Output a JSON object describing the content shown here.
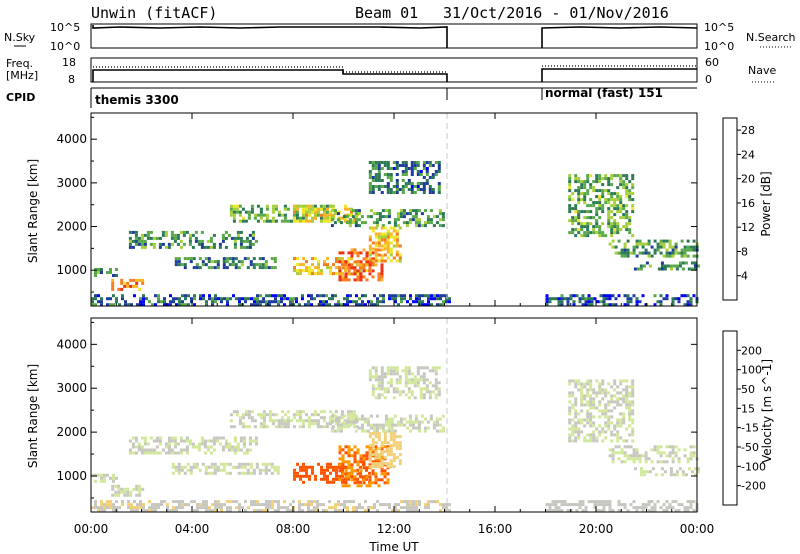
{
  "header": {
    "station": "Unwin (fitACF)",
    "beam": "Beam 01",
    "date_range": "31/Oct/2016 - 01/Nov/2016"
  },
  "nsky_panel": {
    "left_label": "N.Sky",
    "right_label": "N.Search",
    "left_ticks": [
      "10^5",
      "10^0"
    ],
    "right_ticks": [
      "10^5",
      "10^0"
    ]
  },
  "freq_panel": {
    "left_label_1": "Freq.",
    "left_label_2": "[MHz]",
    "right_label": "Nave",
    "left_ticks": [
      "18",
      "8"
    ],
    "right_ticks": [
      "60",
      "0"
    ]
  },
  "cpid_panel": {
    "label": "CPID",
    "segments": [
      "themis 3300",
      "normal (fast) 151"
    ]
  },
  "colors": {
    "power": [
      "#0000ff",
      "#1e3c9c",
      "#2b7a55",
      "#58a84a",
      "#a6cf3a",
      "#f0e62c",
      "#f8b52a",
      "#f77b1f",
      "#ef2e13"
    ],
    "velocity": [
      "#ff0000",
      "#ff5500",
      "#ff9900",
      "#f2d07a",
      "#c7c7c0",
      "#d1e89a",
      "#6cc832",
      "#2e7a32",
      "#244f9b",
      "#2030c0"
    ]
  },
  "chart_data": [
    {
      "type": "heatmap",
      "title": "",
      "ylabel": "Slant Range [km]",
      "xlabel": "",
      "ylim": [
        180,
        4600
      ],
      "yticks": [
        "1000",
        "2000",
        "3000",
        "4000"
      ],
      "xlim_hours": [
        0,
        24
      ],
      "colorbar": {
        "label": "Power [dB]",
        "ticks": [
          "4",
          "8",
          "12",
          "16",
          "20",
          "24",
          "28"
        ],
        "range": [
          0,
          30
        ]
      },
      "regions": [
        {
          "t": [
            0.0,
            1.0
          ],
          "range": [
            850,
            1050
          ],
          "value": 10
        },
        {
          "t": [
            0.8,
            2.1
          ],
          "range": [
            560,
            800
          ],
          "value": 24
        },
        {
          "t": [
            1.5,
            6.5
          ],
          "range": [
            1500,
            1900
          ],
          "value": 10
        },
        {
          "t": [
            3.2,
            7.4
          ],
          "range": [
            1050,
            1300
          ],
          "value": 9
        },
        {
          "t": [
            5.5,
            9.5
          ],
          "range": [
            2100,
            2500
          ],
          "value": 12
        },
        {
          "t": [
            8.0,
            10.5
          ],
          "range": [
            2100,
            2500
          ],
          "value": 19
        },
        {
          "t": [
            9.5,
            14.0
          ],
          "range": [
            2000,
            2400
          ],
          "value": 11
        },
        {
          "t": [
            8.0,
            11.0
          ],
          "range": [
            900,
            1300
          ],
          "value": 21
        },
        {
          "t": [
            9.8,
            11.5
          ],
          "range": [
            800,
            1500
          ],
          "value": 27
        },
        {
          "t": [
            11.0,
            12.2
          ],
          "range": [
            1200,
            2000
          ],
          "value": 20
        },
        {
          "t": [
            11.0,
            13.8
          ],
          "range": [
            2800,
            3500
          ],
          "value": 8
        },
        {
          "t": [
            0.0,
            14.2
          ],
          "range": [
            200,
            450
          ],
          "value": 6
        },
        {
          "t": [
            18.9,
            21.4
          ],
          "range": [
            1800,
            3200
          ],
          "value": 12
        },
        {
          "t": [
            20.5,
            24.0
          ],
          "range": [
            1300,
            1700
          ],
          "value": 11
        },
        {
          "t": [
            21.5,
            24.0
          ],
          "range": [
            1000,
            1200
          ],
          "value": 10
        },
        {
          "t": [
            18.0,
            24.0
          ],
          "range": [
            200,
            450
          ],
          "value": 6
        }
      ]
    },
    {
      "type": "heatmap",
      "title": "",
      "ylabel": "Slant Range [km]",
      "xlabel": "Time UT",
      "ylim": [
        180,
        4600
      ],
      "yticks": [
        "1000",
        "2000",
        "3000",
        "4000"
      ],
      "xticks": [
        "00:00",
        "04:00",
        "08:00",
        "12:00",
        "16:00",
        "20:00",
        "00:00"
      ],
      "xlim_hours": [
        0,
        24
      ],
      "colorbar": {
        "label": "Velocity [m s^-1]",
        "ticks": [
          "-200",
          "-100",
          "-50",
          "-15",
          "15",
          "50",
          "100",
          "200"
        ],
        "range": [
          -250,
          250
        ]
      },
      "regions": [
        {
          "t": [
            0.0,
            1.0
          ],
          "range": [
            850,
            1050
          ],
          "value": 0
        },
        {
          "t": [
            0.8,
            2.1
          ],
          "range": [
            560,
            800
          ],
          "value": -5
        },
        {
          "t": [
            1.5,
            6.5
          ],
          "range": [
            1500,
            1900
          ],
          "value": 0
        },
        {
          "t": [
            3.2,
            7.4
          ],
          "range": [
            1050,
            1300
          ],
          "value": 0
        },
        {
          "t": [
            5.5,
            10.5
          ],
          "range": [
            2100,
            2500
          ],
          "value": 0
        },
        {
          "t": [
            9.5,
            14.0
          ],
          "range": [
            2000,
            2400
          ],
          "value": 0
        },
        {
          "t": [
            8.0,
            11.0
          ],
          "range": [
            850,
            1300
          ],
          "value": -170
        },
        {
          "t": [
            9.8,
            11.8
          ],
          "range": [
            800,
            1700
          ],
          "value": -150
        },
        {
          "t": [
            11.0,
            12.2
          ],
          "range": [
            1200,
            2000
          ],
          "value": -80
        },
        {
          "t": [
            11.0,
            13.8
          ],
          "range": [
            2800,
            3500
          ],
          "value": 0
        },
        {
          "t": [
            0.0,
            14.2
          ],
          "range": [
            200,
            450
          ],
          "value": -40
        },
        {
          "t": [
            18.9,
            21.4
          ],
          "range": [
            1800,
            3200
          ],
          "value": 0
        },
        {
          "t": [
            20.5,
            24.0
          ],
          "range": [
            1300,
            1700
          ],
          "value": 0
        },
        {
          "t": [
            21.5,
            24.0
          ],
          "range": [
            1000,
            1200
          ],
          "value": 0
        },
        {
          "t": [
            18.0,
            24.0
          ],
          "range": [
            200,
            450
          ],
          "value": -30
        }
      ]
    }
  ]
}
